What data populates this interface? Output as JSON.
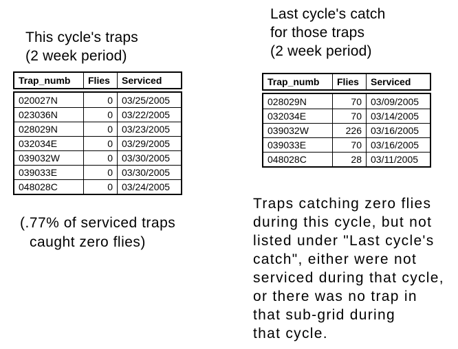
{
  "colors": {
    "background": "#ffffff",
    "text": "#000000",
    "table_border": "#000000"
  },
  "left_section": {
    "heading_lines": [
      "This cycle's traps",
      "(2 week period)"
    ],
    "table": {
      "headers": [
        "Trap_numb",
        "Flies",
        "Serviced"
      ],
      "rows": [
        [
          "020027N",
          "0",
          "03/25/2005"
        ],
        [
          "023036N",
          "0",
          "03/22/2005"
        ],
        [
          "028029N",
          "0",
          "03/23/2005"
        ],
        [
          "032034E",
          "0",
          "03/29/2005"
        ],
        [
          "039032W",
          "0",
          "03/30/2005"
        ],
        [
          "039033E",
          "0",
          "03/30/2005"
        ],
        [
          "048028C",
          "0",
          "03/24/2005"
        ]
      ]
    },
    "note_lines": [
      "(.77% of serviced traps",
      "caught zero flies)"
    ]
  },
  "right_section": {
    "heading_lines": [
      "Last cycle's catch",
      "for those traps",
      "(2 week period)"
    ],
    "table": {
      "headers": [
        "Trap_numb",
        "Flies",
        "Serviced"
      ],
      "rows": [
        [
          "028029N",
          "70",
          "03/09/2005"
        ],
        [
          "032034E",
          "70",
          "03/14/2005"
        ],
        [
          "039032W",
          "226",
          "03/16/2005"
        ],
        [
          "039033E",
          "70",
          "03/16/2005"
        ],
        [
          "048028C",
          "28",
          "03/11/2005"
        ]
      ]
    },
    "note_lines": [
      "Traps catching zero flies",
      "during this cycle, but not",
      "listed under \"Last cycle's",
      "catch\", either were not",
      "serviced during that cycle,",
      "or there was no trap in",
      "that sub-grid during",
      "that cycle."
    ]
  }
}
